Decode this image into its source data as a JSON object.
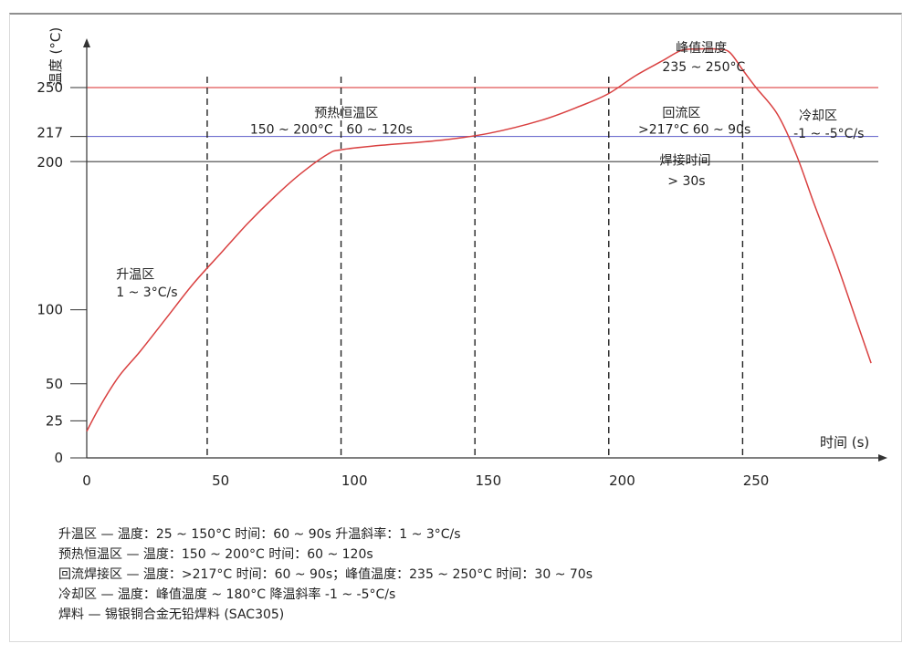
{
  "chart_data": {
    "type": "line",
    "title": "",
    "xlabel": "时间 (s)",
    "ylabel": "温度 (°C)",
    "xlim": [
      0,
      295
    ],
    "ylim": [
      0,
      282
    ],
    "x_ticks": [
      0,
      50,
      100,
      150,
      200,
      250
    ],
    "y_ticks": [
      0,
      25,
      50,
      100,
      200,
      217,
      250
    ],
    "vertical_dashed_lines": [
      45,
      95,
      145,
      195,
      245
    ],
    "reference_lines": [
      {
        "value": 250,
        "color": "#e05555"
      },
      {
        "value": 217,
        "color": "#6f6fcf"
      },
      {
        "value": 200,
        "color": "#444444"
      }
    ],
    "series": [
      {
        "color": "#d94040",
        "points": [
          [
            0,
            18
          ],
          [
            5,
            35
          ],
          [
            12,
            55
          ],
          [
            20,
            72
          ],
          [
            30,
            95
          ],
          [
            40,
            118
          ],
          [
            50,
            138
          ],
          [
            60,
            158
          ],
          [
            70,
            176
          ],
          [
            80,
            192
          ],
          [
            90,
            205
          ],
          [
            95,
            208
          ],
          [
            110,
            211
          ],
          [
            130,
            214
          ],
          [
            150,
            219
          ],
          [
            170,
            228
          ],
          [
            185,
            238
          ],
          [
            195,
            246
          ],
          [
            205,
            258
          ],
          [
            215,
            268
          ],
          [
            222,
            275
          ],
          [
            228,
            276
          ],
          [
            235,
            276
          ],
          [
            240,
            274
          ],
          [
            245,
            262
          ],
          [
            250,
            250
          ],
          [
            258,
            232
          ],
          [
            265,
            205
          ],
          [
            272,
            170
          ],
          [
            280,
            132
          ],
          [
            288,
            90
          ],
          [
            293,
            64
          ]
        ]
      }
    ],
    "annotations": [
      {
        "id": "ramp_title",
        "text": "升温区",
        "x": 11,
        "y": 121
      },
      {
        "id": "ramp_rate",
        "text": "1 ~ 3°C/s",
        "x": 11,
        "y": 109
      },
      {
        "id": "preheat_title",
        "text": "预热恒温区",
        "x": 85,
        "y": 230
      },
      {
        "id": "preheat_temp",
        "text": "150 ~ 200°C",
        "x": 61,
        "y": 219
      },
      {
        "id": "preheat_time",
        "text": "60 ~ 120s",
        "x": 97,
        "y": 219
      },
      {
        "id": "peak_title",
        "text": "峰值温度",
        "x": 220,
        "y": 274
      },
      {
        "id": "peak_range",
        "text": "235 ~ 250°C",
        "x": 215,
        "y": 261
      },
      {
        "id": "reflow_title",
        "text": "回流区",
        "x": 215,
        "y": 230
      },
      {
        "id": "reflow_detail",
        "text": ">217°C  60 ~ 90s",
        "x": 206,
        "y": 219
      },
      {
        "id": "solder_title",
        "text": "焊接时间",
        "x": 214,
        "y": 198
      },
      {
        "id": "solder_time",
        "text": "> 30s",
        "x": 217,
        "y": 184
      },
      {
        "id": "cool_title",
        "text": "冷却区",
        "x": 266,
        "y": 228
      },
      {
        "id": "cool_rate",
        "text": "-1 ~ -5°C/s",
        "x": 264,
        "y": 216
      }
    ]
  },
  "notes": [
    "升温区 — 温度：25 ~ 150°C 时间：60 ~ 90s 升温斜率：1 ~ 3°C/s",
    "预热恒温区 — 温度：150 ~ 200°C 时间：60 ~ 120s",
    "回流焊接区 — 温度：>217°C 时间：60 ~ 90s；峰值温度：235 ~ 250°C 时间：30 ~ 70s",
    "冷却区 — 温度：峰值温度 ~ 180°C 降温斜率 -1 ~ -5°C/s",
    "焊料 — 锡银铜合金无铅焊料 (SAC305)"
  ]
}
